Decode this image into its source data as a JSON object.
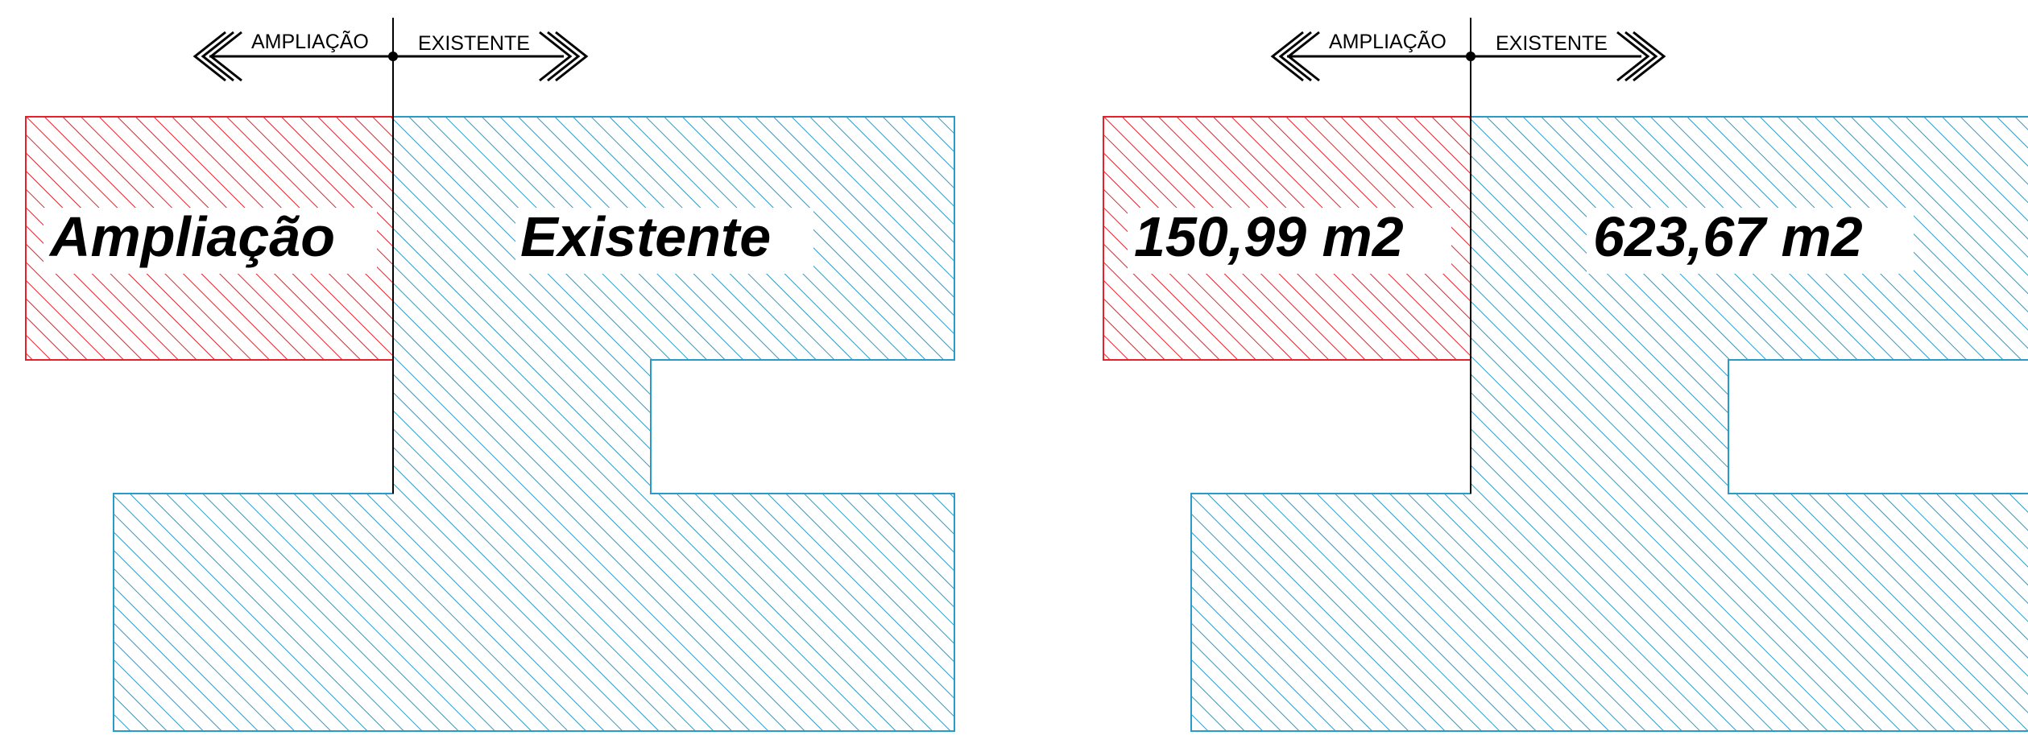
{
  "colors": {
    "ampliacao": "#e8202a",
    "existente": "#2a9bc8",
    "ink": "#000000",
    "background": "#ffffff"
  },
  "panels": [
    {
      "arrow_left_label": "AMPLIAÇÃO",
      "arrow_right_label": "EXISTENTE",
      "ampliacao_label": "Ampliação",
      "existente_label": "Existente"
    },
    {
      "arrow_left_label": "AMPLIAÇÃO",
      "arrow_right_label": "EXISTENTE",
      "ampliacao_label": "150,99 m2",
      "existente_label": "623,67 m2"
    }
  ]
}
